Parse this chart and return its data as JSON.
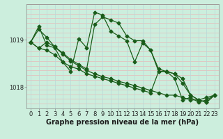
{
  "title": "Graphe pression niveau de la mer (hPa)",
  "bg_color": "#cceedd",
  "line_color": "#1a5c1a",
  "grid_color_h": "#e8b8b8",
  "grid_color_v": "#b8d8d8",
  "ylabel_ticks": [
    1018,
    1019
  ],
  "xlim_min": -0.5,
  "xlim_max": 23.5,
  "ylim_min": 1017.55,
  "ylim_max": 1019.75,
  "series": [
    [
      1018.95,
      1018.82,
      1018.95,
      1018.85,
      1018.7,
      1018.55,
      1018.45,
      1018.35,
      1018.28,
      1018.22,
      1018.18,
      1018.12,
      1018.08,
      1018.03,
      1017.98,
      1017.93,
      1017.88,
      1017.83,
      1017.83,
      1017.78,
      1017.73,
      1017.73,
      1017.78,
      1017.83
    ],
    [
      1018.95,
      1019.22,
      1019.05,
      1018.85,
      1018.72,
      1018.58,
      1018.48,
      1018.38,
      1019.32,
      1019.48,
      1019.42,
      1019.35,
      1019.08,
      1018.98,
      1018.98,
      1018.78,
      1018.38,
      1018.33,
      1018.28,
      1018.18,
      1017.83,
      1017.73,
      1017.68,
      1017.83
    ],
    [
      1018.95,
      1018.82,
      1018.78,
      1018.68,
      1018.53,
      1018.43,
      1018.38,
      1018.28,
      1018.23,
      1018.18,
      1018.13,
      1018.08,
      1018.03,
      1017.98,
      1017.93,
      1017.88,
      1018.33,
      1018.33,
      1018.18,
      1017.73,
      1017.78,
      1017.68,
      1017.73,
      1017.83
    ],
    [
      1018.95,
      1019.28,
      1018.88,
      1018.83,
      1018.53,
      1018.33,
      1019.02,
      1018.83,
      1019.58,
      1019.52,
      1019.18,
      1019.08,
      1018.98,
      1018.53,
      1018.93,
      1018.78,
      1018.33,
      1018.33,
      1018.28,
      1018.08,
      1017.83,
      1017.73,
      1017.68,
      1017.83
    ]
  ],
  "marker": "D",
  "markersize": 2.5,
  "linewidth": 0.9,
  "label_fontsize": 7,
  "tick_fontsize": 6
}
